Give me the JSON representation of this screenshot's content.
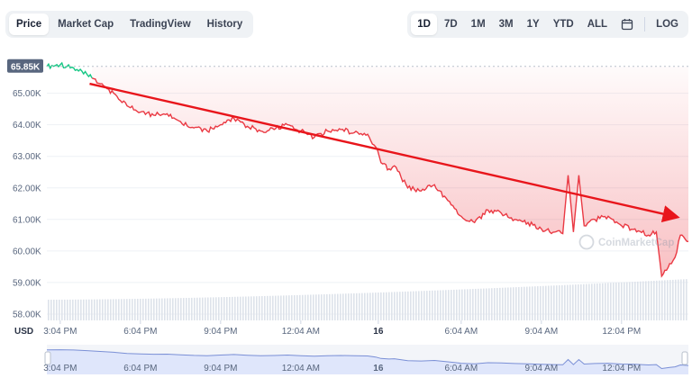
{
  "tabs": [
    {
      "label": "Price",
      "active": true
    },
    {
      "label": "Market Cap",
      "active": false
    },
    {
      "label": "TradingView",
      "active": false
    },
    {
      "label": "History",
      "active": false
    }
  ],
  "ranges": [
    {
      "label": "1D",
      "active": true
    },
    {
      "label": "7D",
      "active": false
    },
    {
      "label": "1M",
      "active": false
    },
    {
      "label": "3M",
      "active": false
    },
    {
      "label": "1Y",
      "active": false
    },
    {
      "label": "YTD",
      "active": false
    },
    {
      "label": "ALL",
      "active": false
    }
  ],
  "log_label": "LOG",
  "calendar_icon": "calendar-icon",
  "currency_label": "USD",
  "watermark": "CoinMarketCap",
  "colors": {
    "line": "#ea3943",
    "line_up": "#16c784",
    "fill": "#ea3943",
    "arrow": "#e8151b",
    "volume": "#dde2ea",
    "navigator_fill": "#dfe6fb",
    "navigator_line": "#7a8fd6"
  },
  "chart_data": {
    "type": "line",
    "ylim": [
      57.8,
      66.3
    ],
    "y_ticks": [
      "65.00K",
      "64.00K",
      "63.00K",
      "62.00K",
      "61.00K",
      "60.00K",
      "59.00K",
      "58.00K"
    ],
    "y_tick_values": [
      65,
      64,
      63,
      62,
      61,
      60,
      59,
      58
    ],
    "current_price_label": "65.85K",
    "current_price_value": 65.85,
    "x_ticks": [
      "3:04 PM",
      "6:04 PM",
      "9:04 PM",
      "12:04 AM",
      "16",
      "6:04 AM",
      "9:04 AM",
      "12:04 PM"
    ],
    "x_tick_hours": [
      0.5,
      3.5,
      6.5,
      9.5,
      12.4,
      15.5,
      18.5,
      21.5
    ],
    "xlim_hours": [
      0,
      24
    ],
    "series": [
      {
        "x": [
          0,
          0.5,
          1,
          1.5,
          2,
          2.5,
          3,
          3.5,
          4,
          4.5,
          5,
          5.5,
          6,
          6.5,
          7,
          7.5,
          8,
          8.5,
          9,
          9.5,
          10,
          10.5,
          11,
          11.5,
          12,
          12.3,
          12.5,
          12.8,
          13,
          13.5,
          14,
          14.5,
          15,
          15.5,
          16,
          16.5,
          17,
          17.5,
          18,
          18.5,
          19,
          19.3,
          19.5,
          19.7,
          19.9,
          20.1,
          20.5,
          21,
          21.5,
          22,
          22.5,
          22.8,
          23,
          23.3,
          23.5,
          23.7,
          24
        ],
        "y": [
          65.85,
          65.9,
          65.8,
          65.6,
          65.3,
          65.0,
          64.6,
          64.4,
          64.3,
          64.35,
          64.1,
          63.9,
          63.8,
          64.0,
          64.2,
          63.95,
          63.8,
          63.85,
          64.0,
          63.8,
          63.6,
          63.8,
          63.85,
          63.75,
          63.7,
          63.3,
          62.8,
          62.6,
          62.7,
          62.0,
          61.9,
          62.1,
          61.6,
          61.1,
          60.9,
          61.3,
          61.2,
          61.0,
          60.9,
          60.7,
          60.6,
          60.55,
          62.4,
          60.6,
          62.4,
          60.8,
          61.0,
          61.1,
          60.8,
          60.7,
          60.5,
          60.6,
          59.2,
          59.6,
          59.8,
          60.5,
          60.3
        ]
      }
    ],
    "trend_arrow": {
      "from": [
        1.6,
        65.3
      ],
      "to": [
        24,
        61.0
      ]
    },
    "volume": {
      "x_start_hours": 0,
      "x_end_hours": 24,
      "relative_levels_start": 0.5,
      "relative_levels_end": 1.0
    }
  },
  "navigator": {
    "labels": [
      "3:04 PM",
      "6:04 PM",
      "9:04 PM",
      "12:04 AM",
      "16",
      "6:04 AM",
      "9:04 AM",
      "12:04 PM"
    ]
  }
}
